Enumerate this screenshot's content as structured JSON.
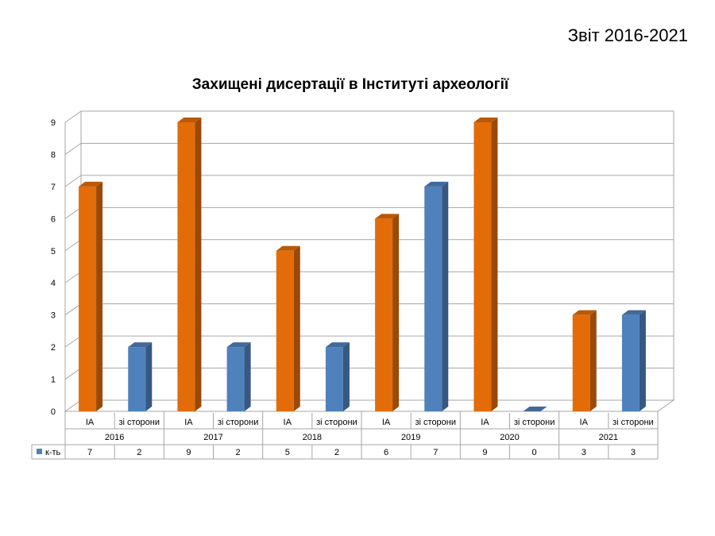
{
  "report_label": "Звіт 2016-2021",
  "chart_data": {
    "type": "bar",
    "title": "Захищені дисертації в Інституті археології",
    "ylim": [
      0,
      9
    ],
    "yticks": [
      0,
      1,
      2,
      3,
      4,
      5,
      6,
      7,
      8,
      9
    ],
    "grid": true,
    "groups": [
      "2016",
      "2017",
      "2018",
      "2019",
      "2020",
      "2021"
    ],
    "subcategories": [
      "ІА",
      "зі сторони",
      "ІА",
      "зі сторони",
      "ІА",
      "зі сторони",
      "ІА",
      "зі сторони",
      "ІА",
      "зі сторони",
      "ІА",
      "зі сторони"
    ],
    "series": [
      {
        "name": "к-ть",
        "values": [
          7,
          2,
          9,
          2,
          5,
          2,
          6,
          7,
          9,
          0,
          3,
          3
        ]
      }
    ],
    "bar_colors": [
      "#E36C09",
      "#4F81BD"
    ],
    "legend_color": "#4F81BD"
  }
}
